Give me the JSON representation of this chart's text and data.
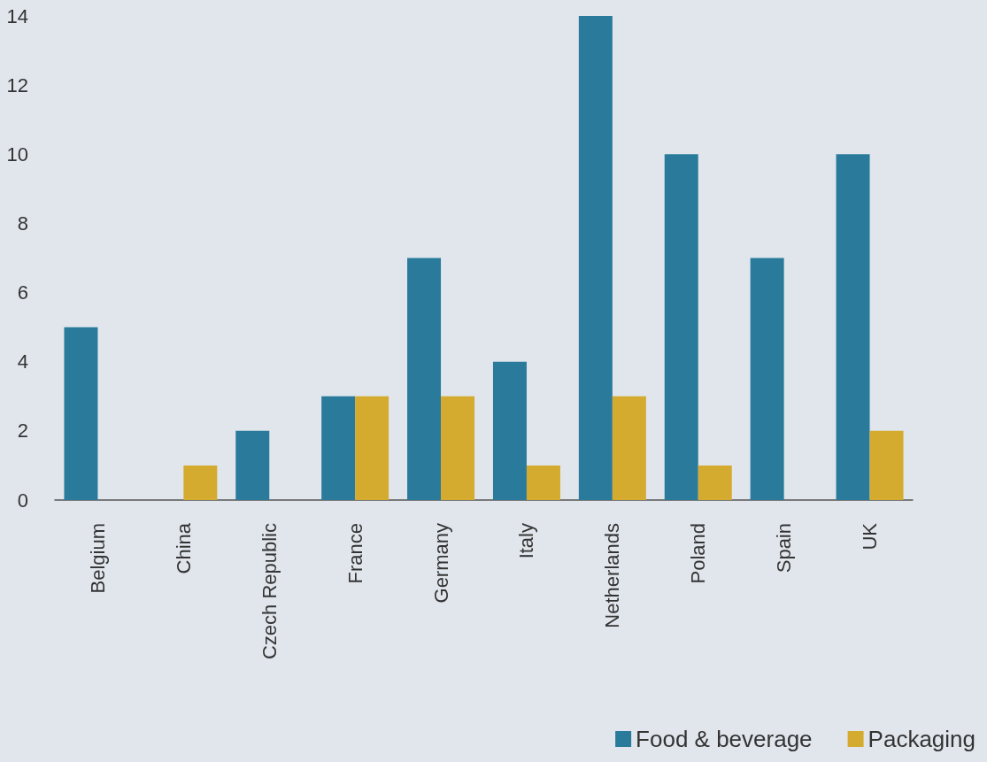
{
  "chart_data": {
    "type": "bar",
    "categories": [
      "Belgium",
      "China",
      "Czech Republic",
      "France",
      "Germany",
      "Italy",
      "Netherlands",
      "Poland",
      "Spain",
      "UK"
    ],
    "series": [
      {
        "name": "Food & beverage",
        "color": "#2a7b9b",
        "values": [
          5,
          0,
          2,
          3,
          7,
          4,
          14,
          10,
          7,
          10
        ]
      },
      {
        "name": "Packaging",
        "color": "#d4ab2f",
        "values": [
          0,
          1,
          0,
          3,
          3,
          1,
          3,
          1,
          0,
          2
        ]
      }
    ],
    "ylim": [
      0,
      14
    ],
    "yticks": [
      0,
      2,
      4,
      6,
      8,
      10,
      12,
      14
    ],
    "grid": false,
    "legend": "bottom right"
  }
}
